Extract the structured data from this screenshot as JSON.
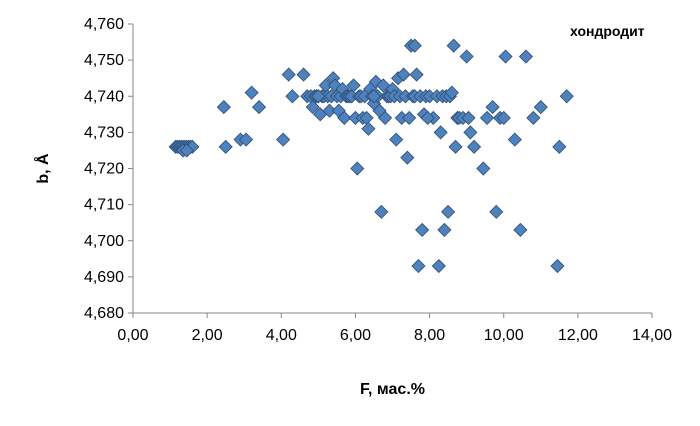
{
  "chart_data": {
    "type": "scatter",
    "annotation": "хондродит",
    "xlabel": "F, мас.%",
    "ylabel": "b, Å",
    "xlim": [
      0,
      14
    ],
    "ylim": [
      4.68,
      4.76
    ],
    "x_ticks": [
      "0,00",
      "2,00",
      "4,00",
      "6,00",
      "8,00",
      "10,00",
      "12,00",
      "14,00"
    ],
    "y_ticks": [
      "4,680",
      "4,690",
      "4,700",
      "4,710",
      "4,720",
      "4,730",
      "4,740",
      "4,750",
      "4,760"
    ],
    "grid": false,
    "marker": "diamond",
    "marker_color": "#4F81BD",
    "marker_edge": "#2C4D75",
    "points": [
      [
        1.15,
        4.726
      ],
      [
        1.2,
        4.726
      ],
      [
        1.25,
        4.726
      ],
      [
        1.3,
        4.726
      ],
      [
        1.35,
        4.726
      ],
      [
        1.4,
        4.726
      ],
      [
        1.45,
        4.726
      ],
      [
        1.5,
        4.726
      ],
      [
        1.55,
        4.726
      ],
      [
        1.6,
        4.726
      ],
      [
        1.35,
        4.725
      ],
      [
        1.45,
        4.725
      ],
      [
        2.45,
        4.737
      ],
      [
        2.5,
        4.726
      ],
      [
        2.9,
        4.728
      ],
      [
        3.05,
        4.728
      ],
      [
        3.2,
        4.741
      ],
      [
        3.4,
        4.737
      ],
      [
        4.05,
        4.728
      ],
      [
        4.2,
        4.746
      ],
      [
        4.3,
        4.74
      ],
      [
        4.6,
        4.746
      ],
      [
        4.7,
        4.74
      ],
      [
        4.8,
        4.74
      ],
      [
        4.85,
        4.737
      ],
      [
        4.9,
        4.74
      ],
      [
        4.95,
        4.74
      ],
      [
        5.0,
        4.74
      ],
      [
        5.05,
        4.735
      ],
      [
        5.1,
        4.74
      ],
      [
        5.15,
        4.74
      ],
      [
        5.2,
        4.743
      ],
      [
        5.25,
        4.74
      ],
      [
        5.3,
        4.736
      ],
      [
        5.35,
        4.74
      ],
      [
        5.4,
        4.745
      ],
      [
        5.45,
        4.743
      ],
      [
        5.5,
        4.74
      ],
      [
        5.55,
        4.736
      ],
      [
        5.6,
        4.74
      ],
      [
        5.65,
        4.742
      ],
      [
        5.7,
        4.734
      ],
      [
        5.75,
        4.74
      ],
      [
        5.8,
        4.74
      ],
      [
        5.85,
        4.74
      ],
      [
        5.9,
        4.74
      ],
      [
        5.95,
        4.743
      ],
      [
        6.0,
        4.734
      ],
      [
        6.05,
        4.72
      ],
      [
        6.1,
        4.74
      ],
      [
        6.15,
        4.74
      ],
      [
        6.2,
        4.734
      ],
      [
        6.25,
        4.74
      ],
      [
        6.3,
        4.734
      ],
      [
        6.35,
        4.731
      ],
      [
        6.4,
        4.742
      ],
      [
        6.45,
        4.74
      ],
      [
        6.5,
        4.738
      ],
      [
        6.55,
        4.744
      ],
      [
        6.6,
        4.74
      ],
      [
        6.65,
        4.736
      ],
      [
        6.7,
        4.708
      ],
      [
        6.75,
        4.743
      ],
      [
        6.8,
        4.734
      ],
      [
        6.85,
        4.74
      ],
      [
        6.9,
        4.74
      ],
      [
        6.95,
        4.74
      ],
      [
        7.0,
        4.742
      ],
      [
        7.05,
        4.74
      ],
      [
        7.1,
        4.728
      ],
      [
        7.15,
        4.745
      ],
      [
        7.2,
        4.74
      ],
      [
        7.25,
        4.734
      ],
      [
        7.3,
        4.746
      ],
      [
        7.35,
        4.74
      ],
      [
        7.4,
        4.723
      ],
      [
        7.45,
        4.734
      ],
      [
        7.5,
        4.754
      ],
      [
        7.55,
        4.74
      ],
      [
        7.6,
        4.74
      ],
      [
        7.65,
        4.746
      ],
      [
        7.7,
        4.693
      ],
      [
        7.75,
        4.74
      ],
      [
        7.8,
        4.703
      ],
      [
        7.85,
        4.735
      ],
      [
        7.9,
        4.74
      ],
      [
        8.0,
        4.74
      ],
      [
        8.1,
        4.734
      ],
      [
        8.2,
        4.74
      ],
      [
        8.25,
        4.693
      ],
      [
        8.3,
        4.73
      ],
      [
        8.35,
        4.74
      ],
      [
        8.4,
        4.703
      ],
      [
        8.45,
        4.74
      ],
      [
        8.5,
        4.708
      ],
      [
        8.55,
        4.74
      ],
      [
        8.6,
        4.741
      ],
      [
        8.65,
        4.754
      ],
      [
        8.7,
        4.726
      ],
      [
        8.75,
        4.734
      ],
      [
        8.8,
        4.734
      ],
      [
        8.9,
        4.734
      ],
      [
        9.0,
        4.751
      ],
      [
        9.05,
        4.734
      ],
      [
        9.1,
        4.73
      ],
      [
        9.2,
        4.726
      ],
      [
        9.45,
        4.72
      ],
      [
        9.55,
        4.734
      ],
      [
        9.7,
        4.737
      ],
      [
        9.8,
        4.708
      ],
      [
        9.9,
        4.734
      ],
      [
        10.0,
        4.734
      ],
      [
        10.05,
        4.751
      ],
      [
        10.3,
        4.728
      ],
      [
        10.45,
        4.703
      ],
      [
        10.6,
        4.751
      ],
      [
        10.8,
        4.734
      ],
      [
        11.0,
        4.737
      ],
      [
        11.45,
        4.693
      ],
      [
        11.5,
        4.726
      ],
      [
        11.7,
        4.74
      ],
      [
        7.6,
        4.754
      ],
      [
        7.95,
        4.734
      ],
      [
        6.5,
        4.74
      ],
      [
        5.0,
        4.74
      ]
    ]
  }
}
